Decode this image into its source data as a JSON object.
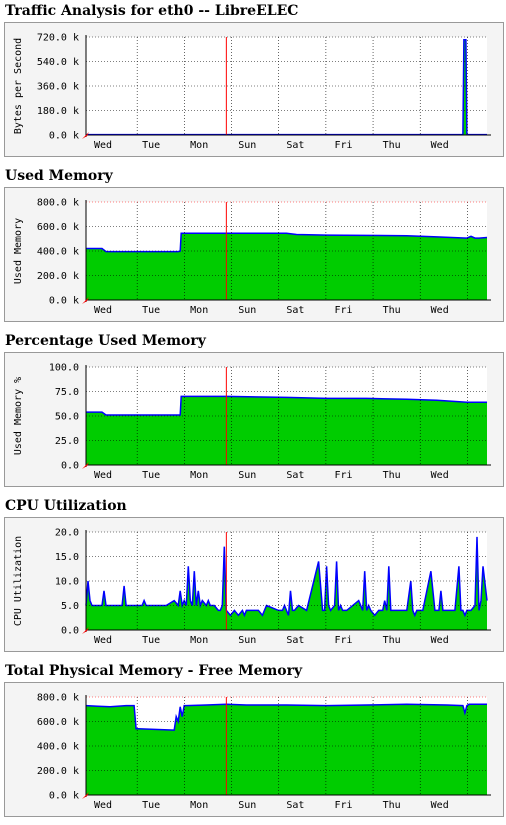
{
  "chart_data": [
    {
      "type": "area",
      "title": "Traffic Analysis for eth0 -- LibreELEC",
      "ylabel": "Bytes per Second",
      "ylim": [
        0,
        720000
      ],
      "yticks": [
        0,
        180000,
        360000,
        540000,
        720000
      ],
      "yticklabels": [
        "0.0 k",
        "180.0 k",
        "360.0 k",
        "540.0 k",
        "720.0 k"
      ],
      "xticklabels": [
        "Wed",
        "Tue",
        "Mon",
        "Sun",
        "Sat",
        "Fri",
        "Thu",
        "Wed"
      ],
      "xlim_hours": [
        0,
        200
      ],
      "series": [
        {
          "x": [
            0,
            40,
            80,
            120,
            160,
            188,
            188.5,
            189.5,
            190,
            200
          ],
          "y": [
            3000,
            3000,
            3000,
            3000,
            3000,
            3000,
            700000,
            700000,
            3000,
            3000
          ]
        }
      ],
      "colors": {
        "fill": "#00cc00",
        "line": "#0000ff"
      }
    },
    {
      "type": "area",
      "title": "Used Memory",
      "ylabel": "Used Memory",
      "ylim": [
        0,
        800000
      ],
      "yticks": [
        0,
        200000,
        400000,
        600000,
        800000
      ],
      "yticklabels": [
        "0.0 k",
        "200.0 k",
        "400.0 k",
        "600.0 k",
        "800.0 k"
      ],
      "xticklabels": [
        "Wed",
        "Tue",
        "Mon",
        "Sun",
        "Sat",
        "Fri",
        "Thu",
        "Wed"
      ],
      "xlim_hours": [
        0,
        200
      ],
      "series": [
        {
          "x": [
            0,
            8,
            10,
            46,
            47,
            47.5,
            70,
            100,
            105,
            120,
            160,
            175,
            190,
            192,
            194,
            196,
            200
          ],
          "y": [
            420000,
            420000,
            395000,
            395000,
            400000,
            545000,
            545000,
            545000,
            535000,
            530000,
            525000,
            515000,
            505000,
            520000,
            505000,
            505000,
            510000
          ]
        }
      ],
      "colors": {
        "fill": "#00cc00",
        "line": "#0000ff"
      }
    },
    {
      "type": "area",
      "title": "Percentage Used Memory",
      "ylabel": "Used Memory %",
      "ylim": [
        0,
        100
      ],
      "yticks": [
        0,
        25,
        50,
        75,
        100
      ],
      "yticklabels": [
        "0.0",
        "25.0",
        "50.0",
        "75.0",
        "100.0"
      ],
      "xticklabels": [
        "Wed",
        "Tue",
        "Mon",
        "Sun",
        "Sat",
        "Fri",
        "Thu",
        "Wed"
      ],
      "xlim_hours": [
        0,
        200
      ],
      "series": [
        {
          "x": [
            0,
            8,
            10,
            46,
            47,
            47.5,
            70,
            100,
            120,
            140,
            160,
            175,
            190,
            200
          ],
          "y": [
            54,
            54,
            51,
            51,
            51,
            70,
            70,
            69,
            68,
            68,
            67,
            66,
            64,
            64
          ]
        }
      ],
      "colors": {
        "fill": "#00cc00",
        "line": "#0000ff"
      }
    },
    {
      "type": "area",
      "title": "CPU Utilization",
      "ylabel": "CPU Utilization",
      "ylim": [
        0,
        20
      ],
      "yticks": [
        0,
        5,
        10,
        15,
        20
      ],
      "yticklabels": [
        "0.0",
        "5.0",
        "10.0",
        "15.0",
        "20.0"
      ],
      "xticklabels": [
        "Wed",
        "Tue",
        "Mon",
        "Sun",
        "Sat",
        "Fri",
        "Thu",
        "Wed"
      ],
      "xlim_hours": [
        0,
        200
      ],
      "series": [
        {
          "x": [
            0,
            1,
            2,
            3,
            6,
            8,
            9,
            10,
            11,
            12,
            14,
            18,
            19,
            20,
            21,
            22,
            26,
            28,
            29,
            30,
            31,
            32,
            36,
            40,
            44,
            46,
            47,
            48,
            49,
            50,
            51,
            52,
            53,
            54,
            55,
            56,
            57,
            58,
            60,
            61,
            62,
            64,
            66,
            67,
            68,
            69,
            70,
            72,
            74,
            76,
            78,
            79,
            80,
            82,
            84,
            86,
            88,
            90,
            96,
            98,
            99,
            100,
            101,
            102,
            103,
            104,
            106,
            110,
            116,
            118,
            119,
            120,
            121,
            122,
            124,
            125,
            126,
            127,
            128,
            130,
            136,
            138,
            139,
            140,
            141,
            142,
            144,
            146,
            148,
            149,
            150,
            151,
            152,
            154,
            160,
            162,
            163,
            164,
            165,
            166,
            168,
            172,
            174,
            175,
            176,
            177,
            178,
            180,
            184,
            186,
            187,
            188,
            189,
            190,
            192,
            194,
            195,
            196,
            197,
            198,
            200
          ],
          "y": [
            5,
            10,
            6,
            5,
            5,
            5,
            8,
            5,
            5,
            5,
            5,
            5,
            9,
            5,
            5,
            5,
            5,
            5,
            6,
            5,
            5,
            5,
            5,
            5,
            6,
            5,
            8,
            5,
            6,
            5,
            13,
            6,
            5,
            12,
            5,
            8,
            5,
            6,
            5,
            6,
            5,
            5,
            4,
            4,
            5,
            17,
            4,
            3,
            4,
            3,
            4,
            3,
            4,
            4,
            4,
            4,
            3,
            5,
            4,
            4,
            5,
            4,
            3,
            8,
            4,
            4,
            5,
            4,
            14,
            4,
            4,
            13,
            5,
            4,
            5,
            14,
            4,
            5,
            4,
            4,
            6,
            4,
            12,
            4,
            5,
            4,
            3,
            4,
            4,
            6,
            4,
            13,
            4,
            4,
            4,
            10,
            4,
            3,
            4,
            4,
            4,
            12,
            4,
            4,
            4,
            8,
            4,
            4,
            4,
            13,
            4,
            4,
            3,
            4,
            4,
            5,
            19,
            4,
            6,
            13,
            6
          ]
        }
      ],
      "colors": {
        "fill": "#00cc00",
        "line": "#0000ff"
      }
    },
    {
      "type": "area",
      "title": "Total Physical Memory - Free Memory",
      "ylabel": "",
      "ylim": [
        0,
        800000
      ],
      "yticks": [
        0,
        200000,
        400000,
        600000,
        800000
      ],
      "yticklabels": [
        "0.0 k",
        "200.0 k",
        "400.0 k",
        "600.0 k",
        "800.0 k"
      ],
      "xticklabels": [
        "Wed",
        "Tue",
        "Mon",
        "Sun",
        "Sat",
        "Fri",
        "Thu",
        "Wed"
      ],
      "xlim_hours": [
        0,
        200
      ],
      "series": [
        {
          "x": [
            0,
            6,
            12,
            20,
            24,
            25,
            26,
            44,
            45,
            46,
            47,
            48,
            49,
            50,
            60,
            70,
            80,
            100,
            120,
            140,
            160,
            180,
            188,
            189,
            190,
            191,
            192,
            200
          ],
          "y": [
            730000,
            725000,
            720000,
            730000,
            730000,
            540000,
            540000,
            530000,
            640000,
            600000,
            720000,
            640000,
            730000,
            730000,
            735000,
            740000,
            735000,
            735000,
            730000,
            735000,
            740000,
            735000,
            730000,
            670000,
            730000,
            740000,
            740000,
            740000
          ]
        }
      ],
      "colors": {
        "fill": "#00cc00",
        "line": "#0000ff"
      }
    }
  ]
}
